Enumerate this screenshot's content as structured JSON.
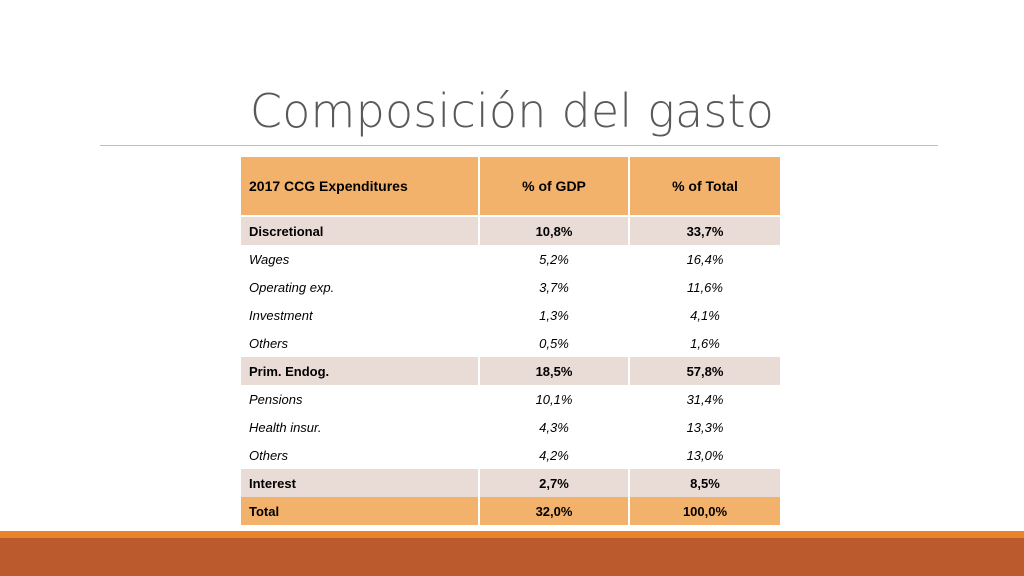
{
  "slide": {
    "title": "Composición del gasto"
  },
  "table": {
    "headers": [
      "2017 CCG Expenditures",
      "% of GDP",
      "% of Total"
    ],
    "rows": [
      {
        "label": "Discretional",
        "gdp": "10,8%",
        "total": "33,7%"
      },
      {
        "label": "Wages",
        "gdp": "5,2%",
        "total": "16,4%"
      },
      {
        "label": "Operating exp.",
        "gdp": "3,7%",
        "total": "11,6%"
      },
      {
        "label": "Investment",
        "gdp": "1,3%",
        "total": "4,1%"
      },
      {
        "label": "Others",
        "gdp": "0,5%",
        "total": "1,6%"
      },
      {
        "label": "Prim. Endog.",
        "gdp": "18,5%",
        "total": "57,8%"
      },
      {
        "label": "Pensions",
        "gdp": "10,1%",
        "total": "31,4%"
      },
      {
        "label": "Health insur.",
        "gdp": "4,3%",
        "total": "13,3%"
      },
      {
        "label": "Others",
        "gdp": "4,2%",
        "total": "13,0%"
      },
      {
        "label": "Interest",
        "gdp": "2,7%",
        "total": "8,5%"
      },
      {
        "label": "Total",
        "gdp": "32,0%",
        "total": "100,0%"
      }
    ]
  },
  "colors": {
    "header_fill": "#f3b26b",
    "category_fill": "#e9dbd6",
    "footer_accent": "#e8852b",
    "footer_bar": "#bb5a2d"
  }
}
